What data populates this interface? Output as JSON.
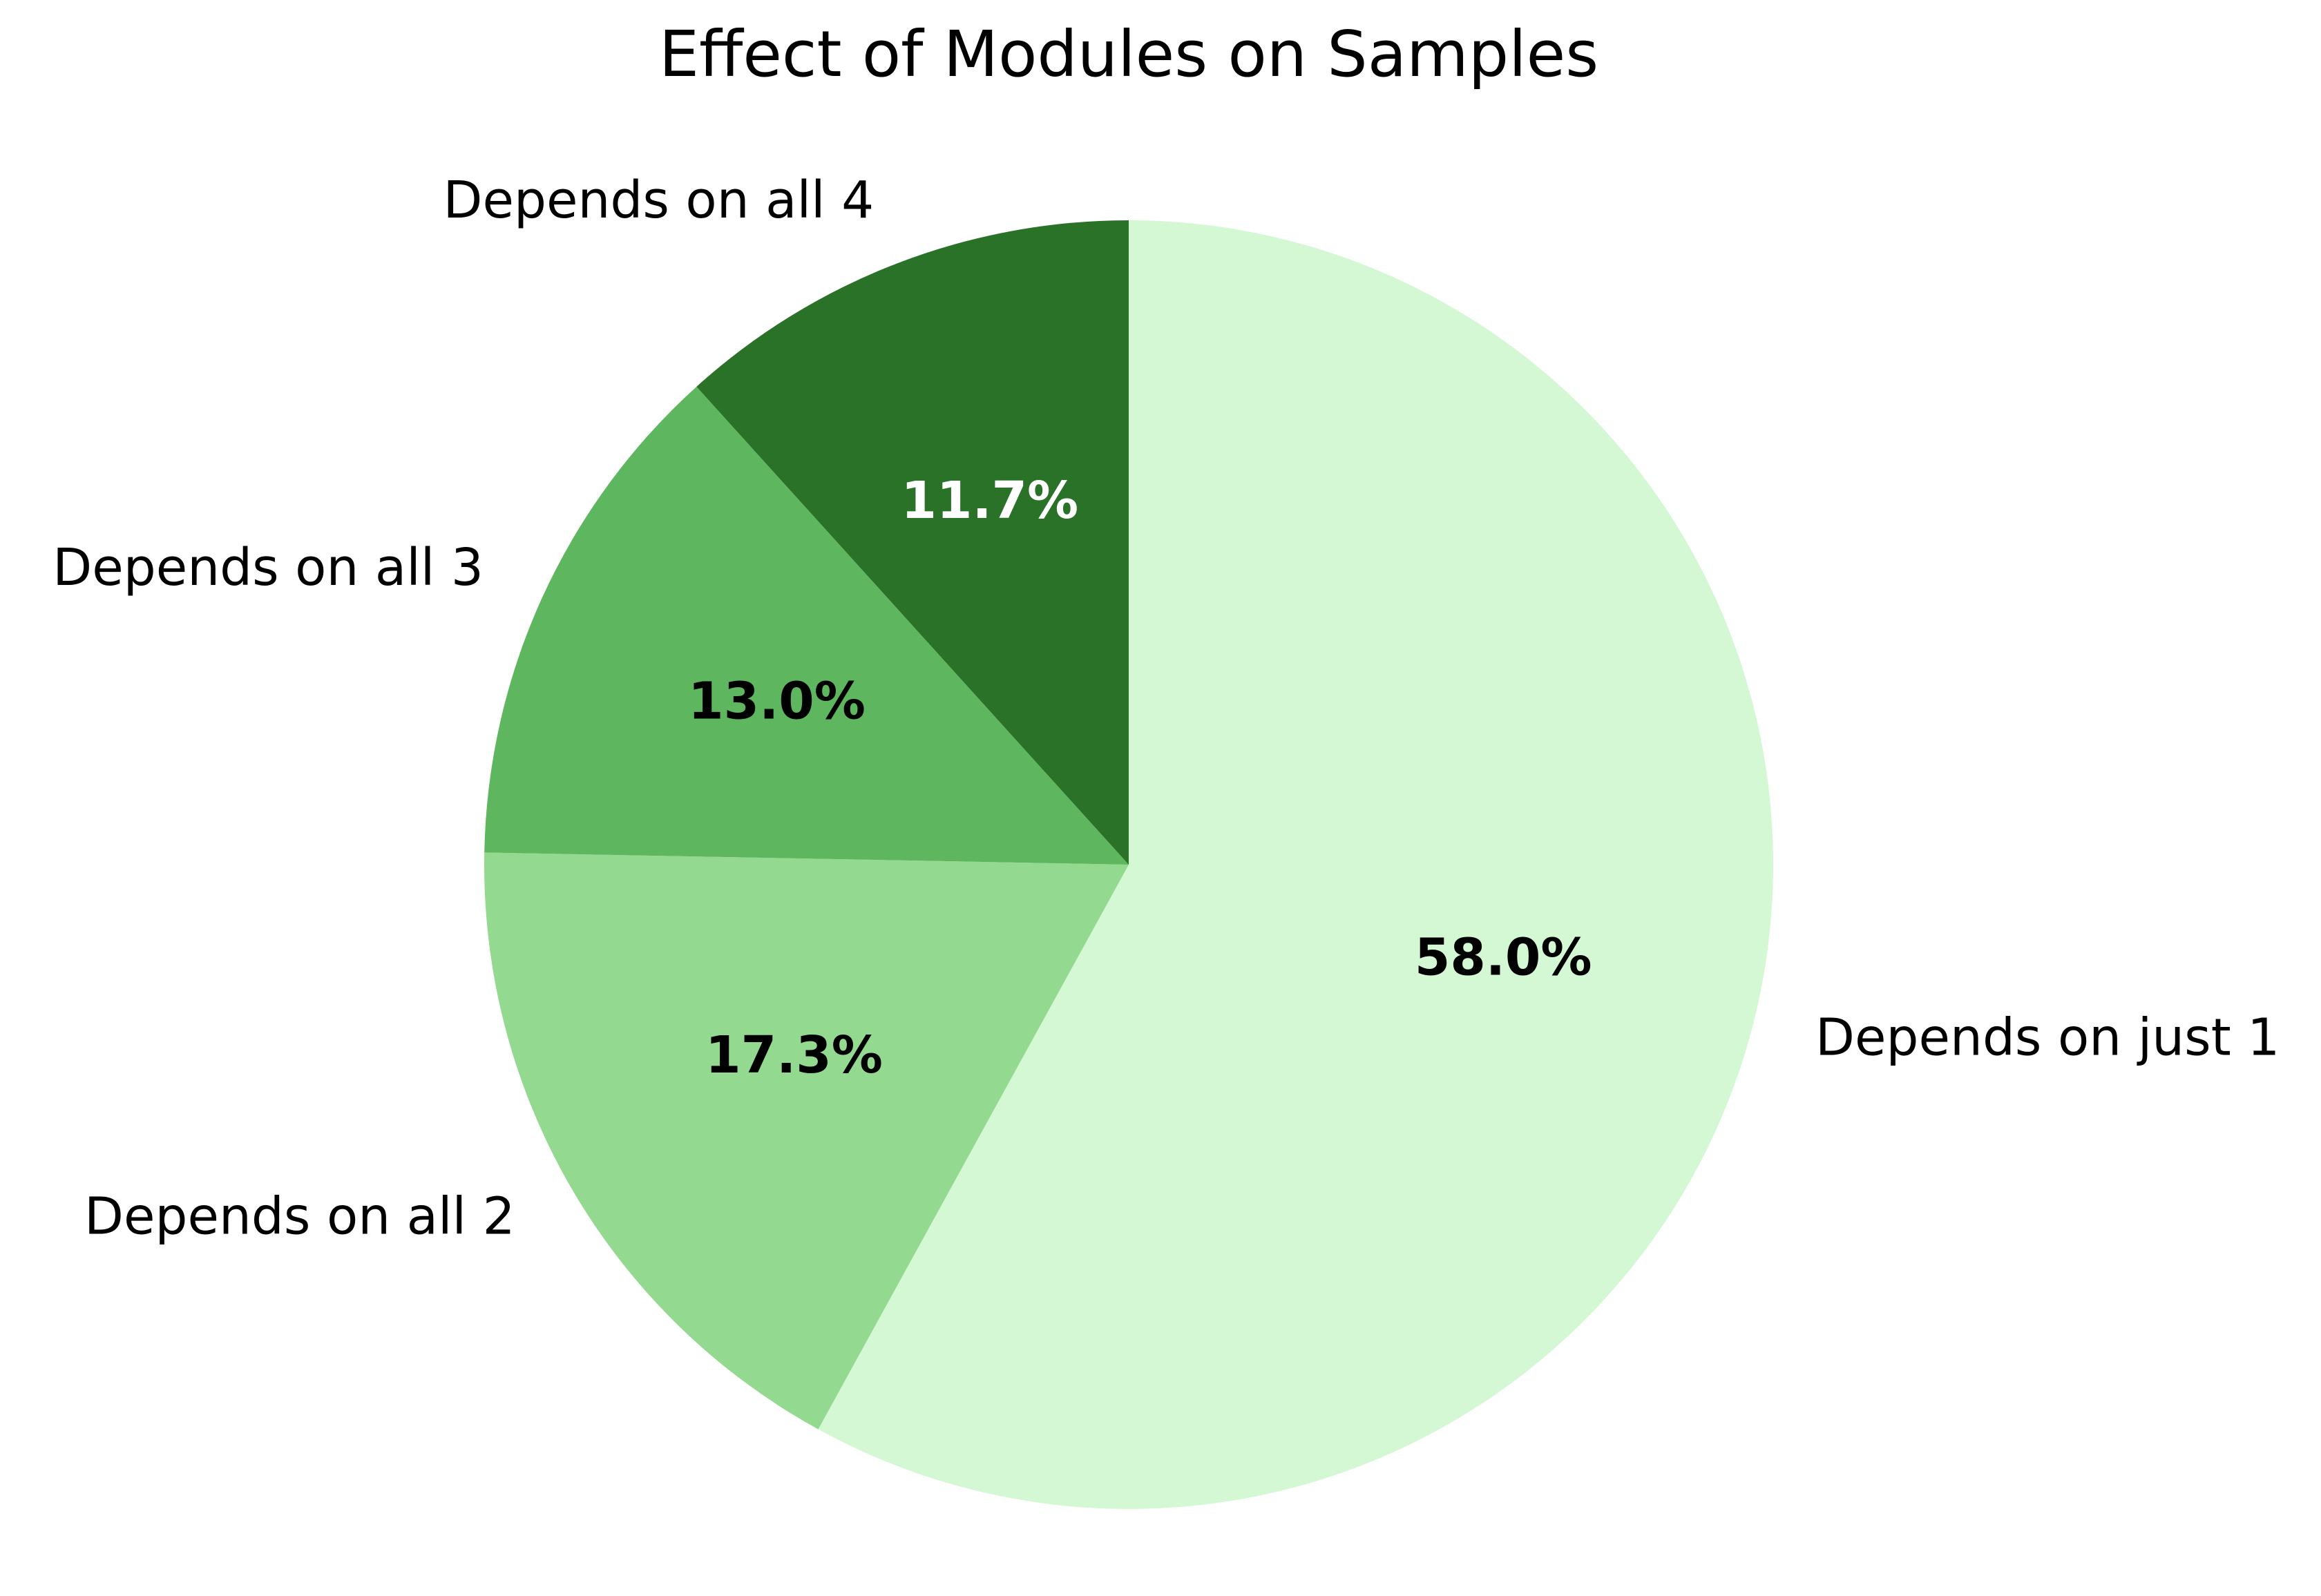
{
  "chart_data": {
    "type": "pie",
    "title": "Effect of Modules on Samples",
    "labels": [
      "Depends on just 1",
      "Depends on all 2",
      "Depends on all 3",
      "Depends on all 4"
    ],
    "values": [
      58.0,
      17.3,
      13.0,
      11.7
    ],
    "percent_labels": [
      "58.0%",
      "17.3%",
      "13.0%",
      "11.7%"
    ],
    "colors": [
      "#d4f7d4",
      "#93d98f",
      "#5eb75e",
      "#297227"
    ],
    "percent_label_colors": [
      "#000000",
      "#000000",
      "#000000",
      "#ffffff"
    ],
    "start_angle_deg": 90,
    "direction": "clockwise",
    "legend": "none"
  }
}
